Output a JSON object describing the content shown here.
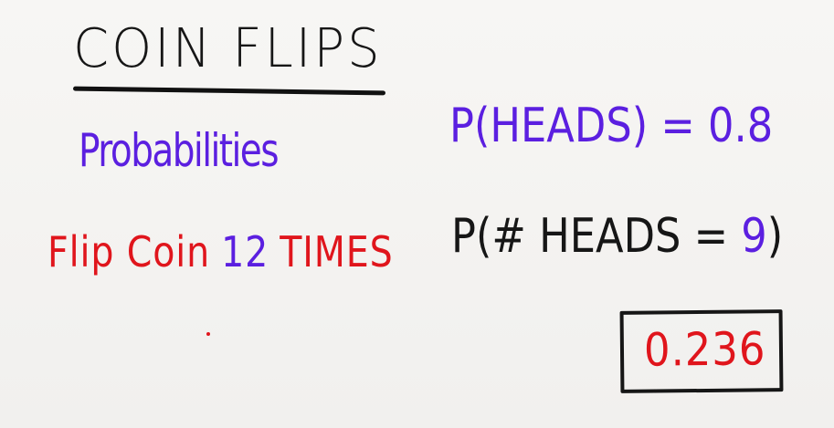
{
  "colors": {
    "black": "#161616",
    "purple": "#5b1fe0",
    "red": "#e0151c"
  },
  "title": "COIN FLIPS",
  "left": {
    "heading": "Probabilities",
    "flip_word": "Flip Coin",
    "flip_count": "12",
    "flip_unit": "TIMES"
  },
  "right": {
    "p_heads_prefix": "P(HEADS) = ",
    "p_heads_value": "0.8",
    "p_num_prefix": "P(# HEADS = ",
    "p_num_value": "9",
    "p_num_suffix": ")"
  },
  "answer": "0.236"
}
